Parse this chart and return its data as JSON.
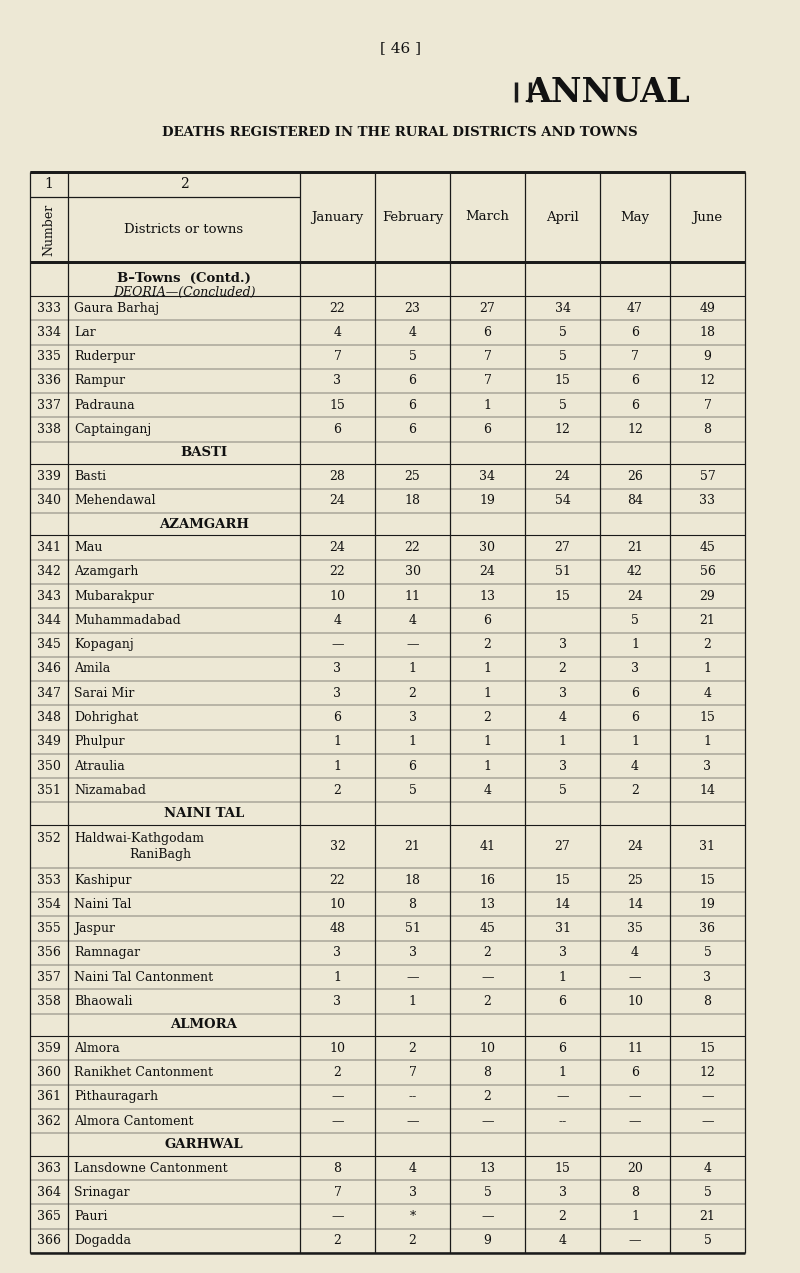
{
  "page_num": "[ 46 ]",
  "title1": "ANNUAL",
  "title2": "DEATHS REGISTERED IN THE RURAL DISTRICTS AND TOWNS",
  "bg_color": "#ede8d5",
  "text_color": "#111111",
  "line_color": "#1a1a1a",
  "months": [
    "January",
    "February",
    "March",
    "April",
    "May",
    "June"
  ],
  "rows": [
    {
      "num": "333",
      "name": "Gaura Barhaj",
      "vals": [
        "22",
        "23",
        "27",
        "34",
        "47",
        "49"
      ],
      "type": "data"
    },
    {
      "num": "334",
      "name": "Lar",
      "vals": [
        "4",
        "4",
        "6",
        "5",
        "6",
        "18"
      ],
      "type": "data"
    },
    {
      "num": "335",
      "name": "Ruderpur",
      "vals": [
        "7",
        "5",
        "7",
        "5",
        "7",
        "9"
      ],
      "type": "data"
    },
    {
      "num": "336",
      "name": "Rampur",
      "vals": [
        "3",
        "6",
        "7",
        "15",
        "6",
        "12"
      ],
      "type": "data"
    },
    {
      "num": "337",
      "name": "Padrauna",
      "vals": [
        "15",
        "6",
        "1",
        "5",
        "6",
        "7"
      ],
      "type": "data"
    },
    {
      "num": "338",
      "name": "Captainganj",
      "vals": [
        "6",
        "6",
        "6",
        "12",
        "12",
        "8"
      ],
      "type": "data"
    },
    {
      "num": "",
      "name": "BASTI",
      "vals": [],
      "type": "section"
    },
    {
      "num": "339",
      "name": "Basti",
      "vals": [
        "28",
        "25",
        "34",
        "24",
        "26",
        "57"
      ],
      "type": "data"
    },
    {
      "num": "340",
      "name": "Mehendawal",
      "vals": [
        "24",
        "18",
        "19",
        "54",
        "84",
        "33"
      ],
      "type": "data"
    },
    {
      "num": "",
      "name": "AZAMGARH",
      "vals": [],
      "type": "section"
    },
    {
      "num": "341",
      "name": "Mau",
      "vals": [
        "24",
        "22",
        "30",
        "27",
        "21",
        "45"
      ],
      "type": "data"
    },
    {
      "num": "342",
      "name": "Azamgarh",
      "vals": [
        "22",
        "30",
        "24",
        "51",
        "42",
        "56"
      ],
      "type": "data"
    },
    {
      "num": "343",
      "name": "Mubarakpur",
      "vals": [
        "10",
        "11",
        "13",
        "15",
        "24",
        "29"
      ],
      "type": "data"
    },
    {
      "num": "344",
      "name": "Muhammadabad",
      "vals": [
        "4",
        "4",
        "6",
        "",
        "5",
        "21"
      ],
      "type": "data"
    },
    {
      "num": "345",
      "name": "Kopaganj",
      "vals": [
        "—",
        "—",
        "2",
        "3",
        "1",
        "2"
      ],
      "type": "data"
    },
    {
      "num": "346",
      "name": "Amila",
      "vals": [
        "3",
        "1",
        "1",
        "2",
        "3",
        "1"
      ],
      "type": "data"
    },
    {
      "num": "347",
      "name": "Sarai Mir",
      "vals": [
        "3",
        "2",
        "1",
        "3",
        "6",
        "4"
      ],
      "type": "data"
    },
    {
      "num": "348",
      "name": "Dohrighat",
      "vals": [
        "6",
        "3",
        "2",
        "4",
        "6",
        "15"
      ],
      "type": "data"
    },
    {
      "num": "349",
      "name": "Phulpur",
      "vals": [
        "1",
        "1",
        "1",
        "1",
        "1",
        "1"
      ],
      "type": "data"
    },
    {
      "num": "350",
      "name": "Atraulia",
      "vals": [
        "1",
        "6",
        "1",
        "3",
        "4",
        "3"
      ],
      "type": "data"
    },
    {
      "num": "351",
      "name": "Nizamabad",
      "vals": [
        "2",
        "5",
        "4",
        "5",
        "2",
        "14"
      ],
      "type": "data"
    },
    {
      "num": "",
      "name": "NAINI TAL",
      "vals": [],
      "type": "section"
    },
    {
      "num": "352",
      "name": "Haldwai-Kathgodam",
      "name2": "RaniBagh",
      "vals": [
        "32",
        "21",
        "41",
        "27",
        "24",
        "31"
      ],
      "type": "data2"
    },
    {
      "num": "353",
      "name": "Kashipur",
      "vals": [
        "22",
        "18",
        "16",
        "15",
        "25",
        "15"
      ],
      "type": "data"
    },
    {
      "num": "354",
      "name": "Naini Tal",
      "vals": [
        "10",
        "8",
        "13",
        "14",
        "14",
        "19"
      ],
      "type": "data"
    },
    {
      "num": "355",
      "name": "Jaspur",
      "vals": [
        "48",
        "51",
        "45",
        "31",
        "35",
        "36"
      ],
      "type": "data"
    },
    {
      "num": "356",
      "name": "Ramnagar",
      "vals": [
        "3",
        "3",
        "2",
        "3",
        "4",
        "5"
      ],
      "type": "data"
    },
    {
      "num": "357",
      "name": "Naini Tal Cantonment",
      "vals": [
        "1",
        "—",
        "—",
        "1",
        "—",
        "3"
      ],
      "type": "data"
    },
    {
      "num": "358",
      "name": "Bhaowali",
      "vals": [
        "3",
        "1",
        "2",
        "6",
        "10",
        "8"
      ],
      "type": "data"
    },
    {
      "num": "",
      "name": "ALMORA",
      "vals": [],
      "type": "section"
    },
    {
      "num": "359",
      "name": "Almora",
      "vals": [
        "10",
        "2",
        "10",
        "6",
        "11",
        "15"
      ],
      "type": "data"
    },
    {
      "num": "360",
      "name": "Ranikhet Cantonment",
      "vals": [
        "2",
        "7",
        "8",
        "1",
        "6",
        "12"
      ],
      "type": "data"
    },
    {
      "num": "361",
      "name": "Pithauragarh",
      "vals": [
        "—",
        "--",
        "2",
        "—",
        "—",
        "—"
      ],
      "type": "data"
    },
    {
      "num": "362",
      "name": "Almora Cantoment",
      "vals": [
        "—",
        "—",
        "—",
        "--",
        "—",
        "—"
      ],
      "type": "data"
    },
    {
      "num": "",
      "name": "GARHWAL",
      "vals": [],
      "type": "section"
    },
    {
      "num": "363",
      "name": "Lansdowne Cantonment",
      "vals": [
        "8",
        "4",
        "13",
        "15",
        "20",
        "4"
      ],
      "type": "data"
    },
    {
      "num": "364",
      "name": "Srinagar",
      "vals": [
        "7",
        "3",
        "5",
        "3",
        "8",
        "5"
      ],
      "type": "data"
    },
    {
      "num": "365",
      "name": "Pauri",
      "vals": [
        "—",
        "*",
        "—",
        "2",
        "1",
        "21"
      ],
      "type": "data"
    },
    {
      "num": "366",
      "name": "Dogadda",
      "vals": [
        "2",
        "2",
        "9",
        "4",
        "—",
        "5"
      ],
      "type": "data"
    }
  ]
}
